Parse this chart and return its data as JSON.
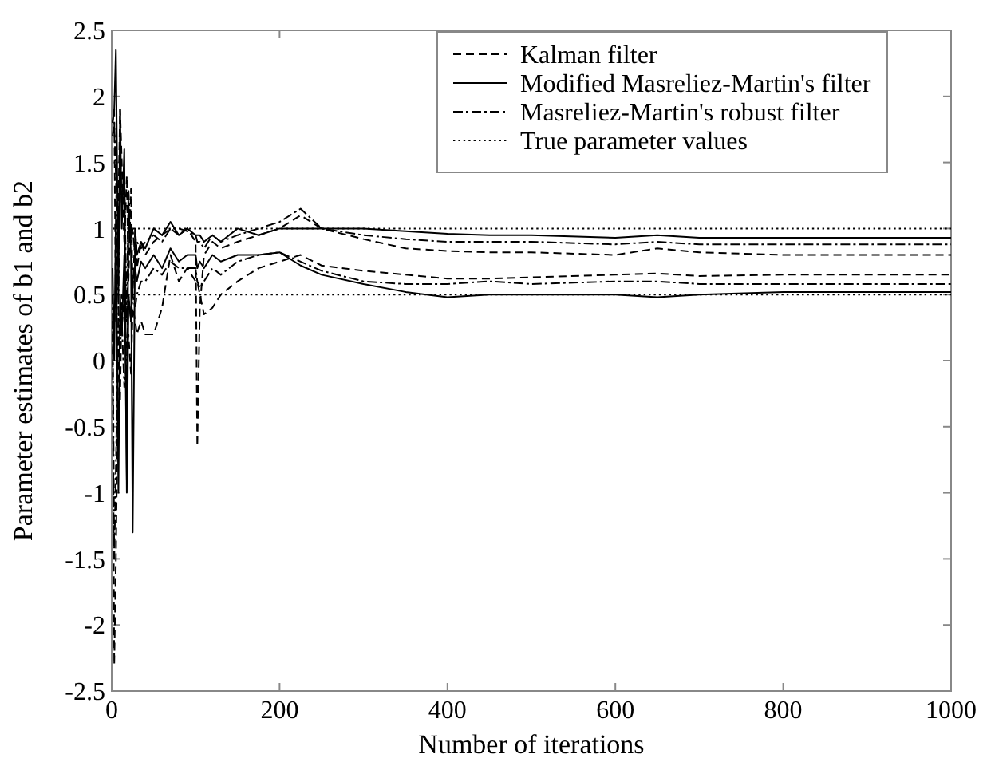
{
  "chart_data": {
    "type": "line",
    "xlabel": "Number of iterations",
    "ylabel": "Parameter estimates of b1 and b2",
    "x": [
      1,
      3,
      5,
      8,
      10,
      12,
      15,
      18,
      20,
      23,
      25,
      28,
      30,
      35,
      40,
      50,
      60,
      70,
      80,
      90,
      100,
      102,
      105,
      110,
      120,
      130,
      150,
      175,
      200,
      225,
      250,
      300,
      350,
      400,
      450,
      500,
      600,
      650,
      700,
      800,
      900,
      1000
    ],
    "xlim": [
      0,
      1000
    ],
    "xticks": [
      0,
      200,
      400,
      600,
      800,
      1000
    ],
    "ylim": [
      -2.5,
      2.5
    ],
    "yticks": [
      -2.5,
      -2,
      -1.5,
      -1,
      -0.5,
      0,
      0.5,
      1,
      1.5,
      2,
      2.5
    ],
    "grid": false,
    "legend": "top right",
    "marker": "none",
    "series": [
      {
        "name": "Kalman filter",
        "color": "#000000",
        "line_style": "dashed",
        "values": [
          1.8,
          1.9,
          0.3,
          1.2,
          1.9,
          1.5,
          0.9,
          1.4,
          0.6,
          1.3,
          0.5,
          1.0,
          0.7,
          0.9,
          0.8,
          0.9,
          0.95,
          1.0,
          0.95,
          1.0,
          0.9,
          -0.65,
          0.4,
          0.8,
          0.9,
          0.85,
          0.9,
          0.95,
          1.0,
          1.1,
          1.0,
          0.92,
          0.85,
          0.83,
          0.82,
          0.82,
          0.8,
          0.85,
          0.82,
          0.8,
          0.8,
          0.8
        ]
      },
      {
        "name": "Modified Masreliez-Martin's filter",
        "color": "#000000",
        "line_style": "solid",
        "values": [
          1.8,
          1.9,
          2.35,
          0.5,
          1.9,
          1.0,
          1.6,
          -1.0,
          1.2,
          0.8,
          -1.3,
          1.0,
          0.8,
          0.9,
          0.85,
          1.0,
          0.95,
          1.05,
          0.95,
          1.0,
          0.95,
          0.95,
          0.95,
          0.9,
          0.95,
          0.9,
          1.0,
          0.95,
          1.0,
          1.0,
          1.0,
          1.0,
          0.98,
          0.96,
          0.95,
          0.95,
          0.93,
          0.95,
          0.93,
          0.93,
          0.93,
          0.93
        ]
      },
      {
        "name": "Masreliez-Martin's robust filter",
        "color": "#000000",
        "line_style": "dashdot",
        "values": [
          1.7,
          1.8,
          1.4,
          0.4,
          1.6,
          1.2,
          1.4,
          0.3,
          1.3,
          0.9,
          1.0,
          0.8,
          0.9,
          0.85,
          0.9,
          0.95,
          0.9,
          1.0,
          1.0,
          0.98,
          0.95,
          0.9,
          0.9,
          0.85,
          0.95,
          0.9,
          0.95,
          1.0,
          1.05,
          1.15,
          1.0,
          0.95,
          0.92,
          0.9,
          0.9,
          0.9,
          0.88,
          0.9,
          0.88,
          0.88,
          0.88,
          0.88
        ]
      },
      {
        "name": "True parameter values",
        "color": "#000000",
        "line_style": "dotted",
        "values": [
          1,
          1,
          1,
          1,
          1,
          1,
          1,
          1,
          1,
          1,
          1,
          1,
          1,
          1,
          1,
          1,
          1,
          1,
          1,
          1,
          1,
          1,
          1,
          1,
          1,
          1,
          1,
          1,
          1,
          1,
          1,
          1,
          1,
          1,
          1,
          1,
          1,
          1,
          1,
          1,
          1,
          1
        ]
      },
      {
        "color": "#000000",
        "line_style": "dashed",
        "values": [
          0.3,
          -2.3,
          -1.5,
          0.2,
          -0.3,
          0.5,
          0.3,
          0.1,
          0.2,
          -0.1,
          0.4,
          0.3,
          0.2,
          0.3,
          0.2,
          0.2,
          0.4,
          0.8,
          0.6,
          0.7,
          0.6,
          0.6,
          0.5,
          0.35,
          0.4,
          0.5,
          0.6,
          0.7,
          0.75,
          0.8,
          0.72,
          0.68,
          0.65,
          0.62,
          0.62,
          0.63,
          0.65,
          0.66,
          0.64,
          0.65,
          0.65,
          0.65
        ]
      },
      {
        "color": "#000000",
        "line_style": "solid",
        "values": [
          0.7,
          0.0,
          1.1,
          -1.0,
          0.5,
          0.2,
          0.8,
          -0.9,
          0.5,
          0.3,
          0.6,
          0.7,
          0.6,
          0.75,
          0.7,
          0.8,
          0.7,
          0.85,
          0.75,
          0.8,
          0.8,
          0.7,
          0.75,
          0.7,
          0.8,
          0.75,
          0.8,
          0.8,
          0.82,
          0.72,
          0.65,
          0.58,
          0.52,
          0.48,
          0.5,
          0.5,
          0.5,
          0.48,
          0.5,
          0.52,
          0.52,
          0.52
        ]
      },
      {
        "color": "#000000",
        "line_style": "dashdot",
        "values": [
          0.5,
          -1.5,
          -0.8,
          0.4,
          0.1,
          0.3,
          -0.2,
          0.0,
          0.5,
          0.3,
          0.5,
          0.4,
          0.5,
          0.6,
          0.6,
          0.7,
          0.65,
          0.75,
          0.7,
          0.7,
          0.7,
          0.6,
          0.55,
          0.6,
          0.7,
          0.65,
          0.75,
          0.8,
          0.82,
          0.75,
          0.68,
          0.6,
          0.58,
          0.58,
          0.6,
          0.58,
          0.6,
          0.6,
          0.58,
          0.58,
          0.58,
          0.58
        ]
      },
      {
        "color": "#000000",
        "line_style": "dotted",
        "values": [
          0.5,
          0.5,
          0.5,
          0.5,
          0.5,
          0.5,
          0.5,
          0.5,
          0.5,
          0.5,
          0.5,
          0.5,
          0.5,
          0.5,
          0.5,
          0.5,
          0.5,
          0.5,
          0.5,
          0.5,
          0.5,
          0.5,
          0.5,
          0.5,
          0.5,
          0.5,
          0.5,
          0.5,
          0.5,
          0.5,
          0.5,
          0.5,
          0.5,
          0.5,
          0.5,
          0.5,
          0.5,
          0.5,
          0.5,
          0.5,
          0.5,
          0.5
        ]
      }
    ]
  }
}
